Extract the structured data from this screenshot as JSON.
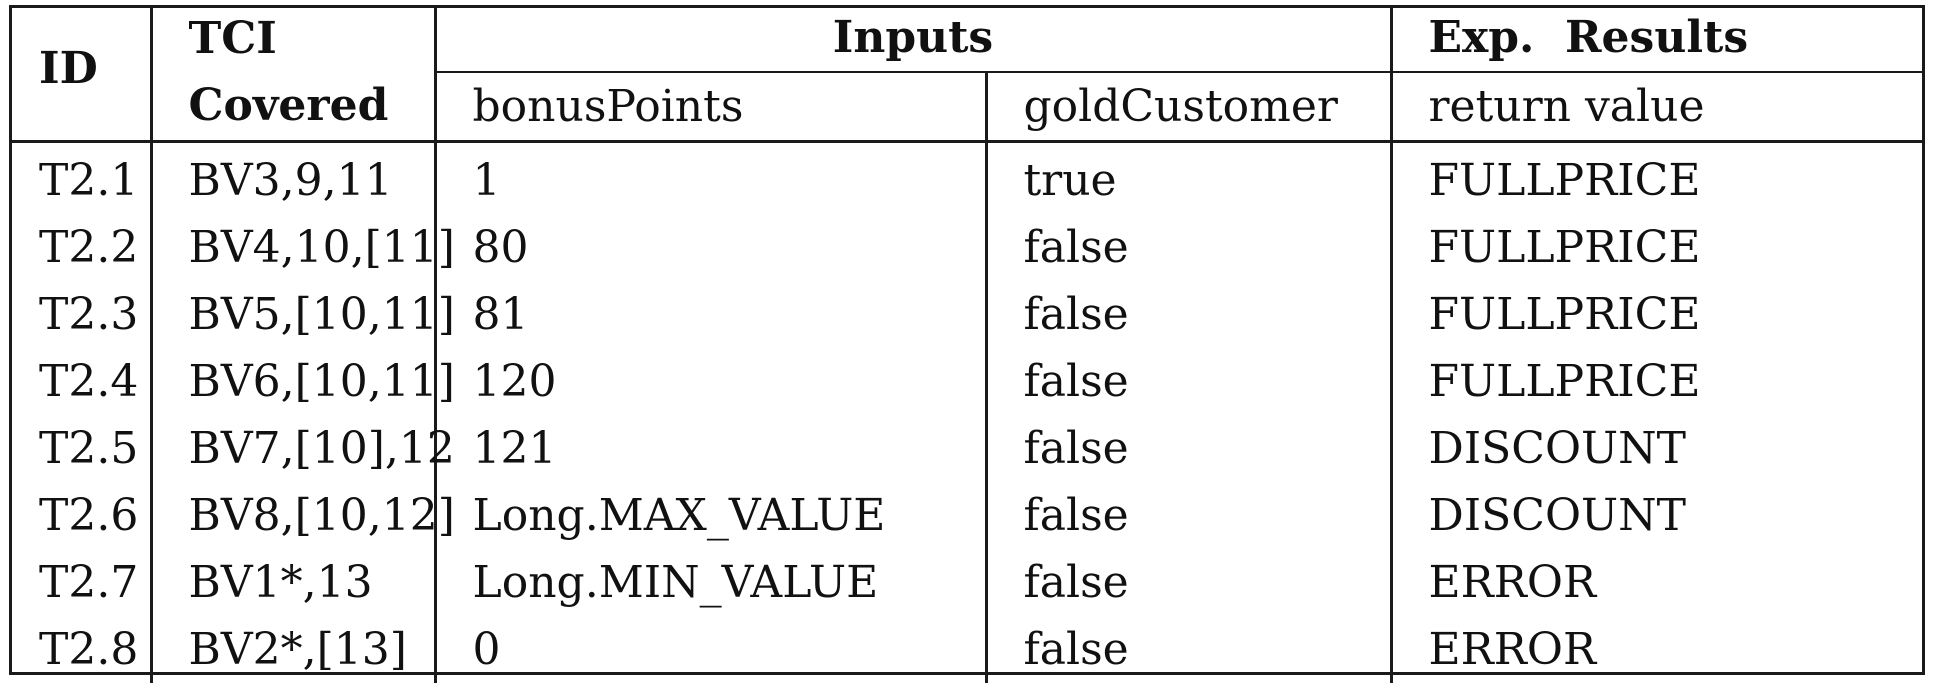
{
  "table": {
    "headers": {
      "id": "ID",
      "tci_line1": "TCI",
      "tci_line2": "Covered",
      "inputs": "Inputs",
      "exp_results": "Exp.  Results",
      "bonus_points": "bonusPoints",
      "gold_customer": "goldCustomer",
      "return_value": "return value"
    },
    "rows": [
      {
        "id": "T2.1",
        "tci": "BV3,9,11",
        "bonus": "1",
        "gold": "true",
        "result": "FULLPRICE"
      },
      {
        "id": "T2.2",
        "tci": "BV4,10,[11]",
        "bonus": "80",
        "gold": "false",
        "result": "FULLPRICE"
      },
      {
        "id": "T2.3",
        "tci": "BV5,[10,11]",
        "bonus": "81",
        "gold": "false",
        "result": "FULLPRICE"
      },
      {
        "id": "T2.4",
        "tci": "BV6,[10,11]",
        "bonus": "120",
        "gold": "false",
        "result": "FULLPRICE"
      },
      {
        "id": "T2.5",
        "tci": "BV7,[10],12",
        "bonus": "121",
        "gold": "false",
        "result": "DISCOUNT"
      },
      {
        "id": "T2.6",
        "tci": "BV8,[10,12]",
        "bonus": "Long.MAX_VALUE",
        "gold": "false",
        "result": "DISCOUNT"
      },
      {
        "id": "T2.7",
        "tci": "BV1*,13",
        "bonus": "Long.MIN_VALUE",
        "gold": "false",
        "result": "ERROR"
      },
      {
        "id": "T2.8",
        "tci": "BV2*,[13]",
        "bonus": "0",
        "gold": "false",
        "result": "ERROR"
      }
    ]
  }
}
